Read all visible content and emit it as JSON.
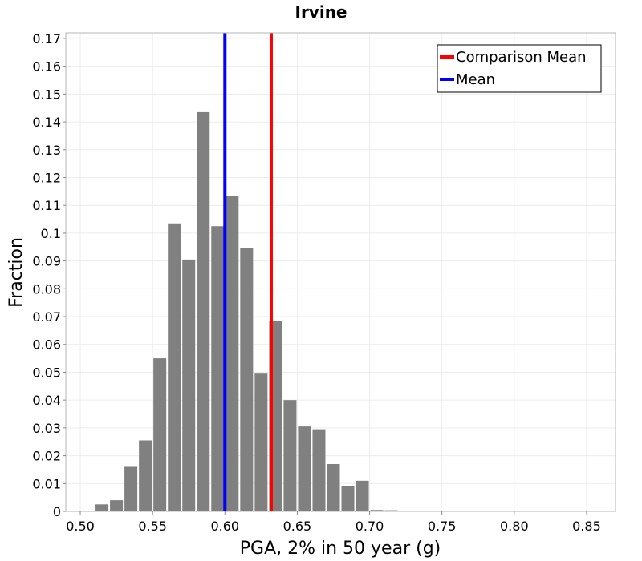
{
  "chart_data": {
    "type": "bar",
    "title": "Irvine",
    "xlabel": "PGA, 2% in 50 year (g)",
    "ylabel": "Fraction",
    "xlim": [
      0.49,
      0.87
    ],
    "ylim": [
      0,
      0.172
    ],
    "bin_width": 0.01,
    "bins": [
      {
        "x": 0.515,
        "value": 0.0025
      },
      {
        "x": 0.525,
        "value": 0.004
      },
      {
        "x": 0.535,
        "value": 0.016
      },
      {
        "x": 0.545,
        "value": 0.0255
      },
      {
        "x": 0.555,
        "value": 0.055
      },
      {
        "x": 0.565,
        "value": 0.1035
      },
      {
        "x": 0.575,
        "value": 0.0905
      },
      {
        "x": 0.585,
        "value": 0.1435
      },
      {
        "x": 0.595,
        "value": 0.1025
      },
      {
        "x": 0.605,
        "value": 0.1135
      },
      {
        "x": 0.615,
        "value": 0.0945
      },
      {
        "x": 0.625,
        "value": 0.0495
      },
      {
        "x": 0.635,
        "value": 0.0685
      },
      {
        "x": 0.645,
        "value": 0.04
      },
      {
        "x": 0.655,
        "value": 0.0305
      },
      {
        "x": 0.665,
        "value": 0.0295
      },
      {
        "x": 0.675,
        "value": 0.017
      },
      {
        "x": 0.685,
        "value": 0.009
      },
      {
        "x": 0.695,
        "value": 0.011
      },
      {
        "x": 0.705,
        "value": 0.0005
      },
      {
        "x": 0.715,
        "value": 0.0004
      }
    ],
    "bar_color": "#808080",
    "vlines": [
      {
        "name": "Comparison Mean",
        "x": 0.632,
        "color": "#ff0000"
      },
      {
        "name": "Mean",
        "x": 0.6,
        "color": "#0000ff"
      }
    ],
    "x_ticks": [
      "0.50",
      "0.55",
      "0.60",
      "0.65",
      "0.70",
      "0.75",
      "0.80",
      "0.85"
    ],
    "x_tick_values": [
      0.5,
      0.55,
      0.6,
      0.65,
      0.7,
      0.75,
      0.8,
      0.85
    ],
    "y_ticks": [
      "0",
      "0.01",
      "0.02",
      "0.03",
      "0.04",
      "0.05",
      "0.06",
      "0.07",
      "0.08",
      "0.09",
      "0.1",
      "0.11",
      "0.12",
      "0.13",
      "0.14",
      "0.15",
      "0.16",
      "0.17"
    ],
    "y_tick_values": [
      0,
      0.01,
      0.02,
      0.03,
      0.04,
      0.05,
      0.06,
      0.07,
      0.08,
      0.09,
      0.1,
      0.11,
      0.12,
      0.13,
      0.14,
      0.15,
      0.16,
      0.17
    ],
    "legend": {
      "position": "top-right",
      "entries": [
        {
          "label": "Comparison Mean",
          "color": "#ff0000"
        },
        {
          "label": "Mean",
          "color": "#0000ff"
        }
      ]
    },
    "grid": true
  }
}
